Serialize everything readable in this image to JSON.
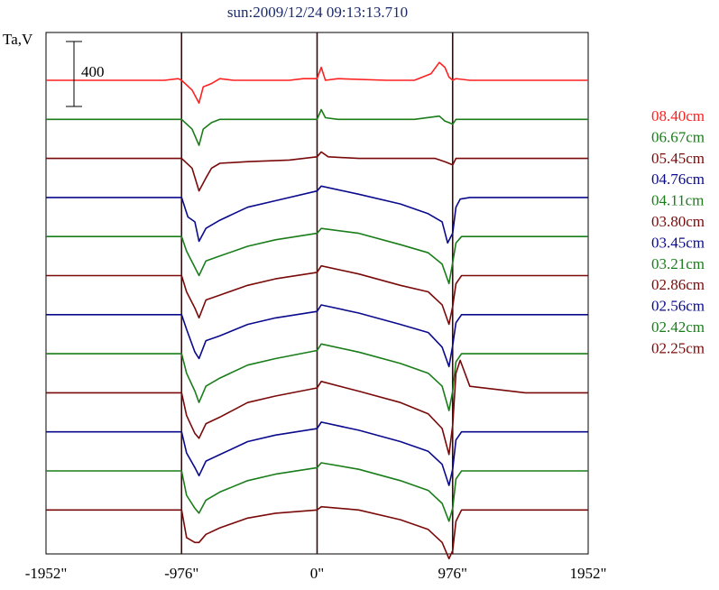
{
  "chart_data": {
    "type": "line",
    "title": "sun:2009/12/24 09:13:13.710",
    "ylabel": "Ta,V",
    "scale_bar_label": "400",
    "x_range": [
      -1952,
      1952
    ],
    "x_ticks": [
      {
        "value": -1952,
        "label": "-1952\""
      },
      {
        "value": -976,
        "label": "-976\""
      },
      {
        "value": 0,
        "label": "0\""
      },
      {
        "value": 976,
        "label": "976\""
      },
      {
        "value": 1952,
        "label": "1952\""
      }
    ],
    "limb_marks": [
      -976,
      0,
      976
    ],
    "x_offset_label": "none",
    "series": [
      {
        "name": "08.40cm",
        "color": "#ff2020",
        "x": [
          -1952,
          -1100,
          -1000,
          -976,
          -900,
          -850,
          -820,
          -760,
          -700,
          -600,
          -200,
          -100,
          0,
          30,
          60,
          150,
          500,
          700,
          820,
          880,
          920,
          950,
          976,
          1000,
          1100,
          1500,
          1952
        ],
        "y": [
          0,
          0,
          10,
          0,
          -60,
          -140,
          -40,
          -20,
          10,
          0,
          0,
          10,
          10,
          80,
          0,
          10,
          0,
          0,
          40,
          110,
          80,
          20,
          0,
          10,
          0,
          0,
          0
        ]
      },
      {
        "name": "06.67cm",
        "color": "#1a7d1a",
        "x": [
          -1952,
          -1000,
          -976,
          -900,
          -850,
          -820,
          -760,
          -700,
          -200,
          0,
          30,
          60,
          150,
          500,
          700,
          880,
          920,
          950,
          976,
          1000,
          1500,
          1952
        ],
        "y": [
          0,
          0,
          0,
          -60,
          -160,
          -60,
          -20,
          0,
          0,
          0,
          60,
          10,
          0,
          0,
          0,
          20,
          -10,
          -20,
          -30,
          0,
          0,
          0
        ]
      },
      {
        "name": "05.45cm",
        "color": "#7a0a0a",
        "x": [
          -1952,
          -1000,
          -976,
          -900,
          -850,
          -800,
          -760,
          -700,
          -500,
          -200,
          0,
          30,
          80,
          300,
          700,
          850,
          920,
          976,
          1000,
          1500,
          1952
        ],
        "y": [
          0,
          0,
          0,
          -60,
          -200,
          -120,
          -60,
          -30,
          -20,
          -10,
          10,
          40,
          10,
          0,
          0,
          0,
          -20,
          -40,
          0,
          0,
          0
        ]
      },
      {
        "name": "04.76cm",
        "color": "#0a0a8c",
        "x": [
          -1952,
          -1000,
          -976,
          -930,
          -880,
          -850,
          -800,
          -700,
          -500,
          -300,
          0,
          30,
          300,
          600,
          800,
          900,
          940,
          976,
          1000,
          1030,
          1100,
          1500,
          1952
        ],
        "y": [
          0,
          0,
          0,
          -120,
          -150,
          -270,
          -190,
          -140,
          -60,
          -20,
          40,
          70,
          20,
          -40,
          -100,
          -150,
          -280,
          -220,
          -60,
          -10,
          0,
          0,
          0
        ]
      },
      {
        "name": "04.11cm",
        "color": "#1a7d1a",
        "x": [
          -1952,
          -1000,
          -976,
          -940,
          -880,
          -850,
          -800,
          -700,
          -500,
          -300,
          0,
          30,
          300,
          600,
          800,
          900,
          950,
          976,
          1000,
          1040,
          1100,
          1500,
          1952
        ],
        "y": [
          0,
          0,
          0,
          -90,
          -190,
          -240,
          -150,
          -120,
          -60,
          -20,
          20,
          50,
          20,
          -50,
          -100,
          -170,
          -290,
          -160,
          -40,
          0,
          0,
          0,
          0
        ]
      },
      {
        "name": "03.80cm",
        "color": "#7a0a0a",
        "x": [
          -1952,
          -1000,
          -976,
          -940,
          -880,
          -850,
          -800,
          -700,
          -500,
          -300,
          0,
          30,
          300,
          600,
          800,
          900,
          950,
          976,
          1000,
          1040,
          1100,
          1500,
          1952
        ],
        "y": [
          0,
          0,
          0,
          -100,
          -200,
          -260,
          -150,
          -120,
          -60,
          -20,
          20,
          60,
          10,
          -60,
          -100,
          -180,
          -300,
          -190,
          -50,
          0,
          0,
          0,
          0
        ]
      },
      {
        "name": "03.45cm",
        "color": "#0a0a8c",
        "x": [
          -1952,
          -1000,
          -976,
          -940,
          -880,
          -850,
          -800,
          -700,
          -500,
          -300,
          0,
          30,
          300,
          600,
          800,
          900,
          950,
          976,
          1000,
          1040,
          1100,
          1500,
          1952
        ],
        "y": [
          0,
          0,
          0,
          -90,
          -230,
          -270,
          -160,
          -130,
          -60,
          -20,
          20,
          60,
          10,
          -60,
          -110,
          -200,
          -320,
          -190,
          -50,
          0,
          0,
          0,
          0
        ]
      },
      {
        "name": "03.21cm",
        "color": "#1a7d1a",
        "x": [
          -1952,
          -1000,
          -976,
          -940,
          -880,
          -850,
          -800,
          -700,
          -500,
          -300,
          0,
          30,
          300,
          600,
          800,
          900,
          950,
          976,
          1000,
          1040,
          1100,
          1500,
          1952
        ],
        "y": [
          0,
          0,
          0,
          -120,
          -230,
          -300,
          -200,
          -150,
          -70,
          -30,
          20,
          60,
          10,
          -60,
          -120,
          -200,
          -350,
          -230,
          -50,
          0,
          0,
          0,
          0
        ]
      },
      {
        "name": "02.86cm",
        "color": "#7a0a0a",
        "x": [
          -1952,
          -1000,
          -976,
          -940,
          -880,
          -850,
          -800,
          -700,
          -500,
          -300,
          0,
          30,
          300,
          600,
          800,
          900,
          950,
          976,
          1000,
          1030,
          1100,
          1500,
          1952
        ],
        "y": [
          0,
          0,
          0,
          -140,
          -250,
          -280,
          -190,
          -150,
          -60,
          -20,
          30,
          70,
          10,
          -60,
          -130,
          -220,
          -380,
          -200,
          120,
          200,
          40,
          0,
          0
        ]
      },
      {
        "name": "02.56cm",
        "color": "#0a0a8c",
        "x": [
          -1952,
          -1000,
          -976,
          -940,
          -880,
          -850,
          -800,
          -700,
          -500,
          -300,
          0,
          30,
          300,
          600,
          800,
          900,
          950,
          976,
          1000,
          1040,
          1100,
          1500,
          1952
        ],
        "y": [
          0,
          0,
          0,
          -130,
          -220,
          -270,
          -180,
          -140,
          -60,
          -20,
          20,
          60,
          10,
          -60,
          -120,
          -200,
          -330,
          -230,
          -50,
          0,
          0,
          0,
          0
        ]
      },
      {
        "name": "02.42cm",
        "color": "#1a7d1a",
        "x": [
          -1952,
          -1000,
          -976,
          -940,
          -880,
          -850,
          -800,
          -700,
          -500,
          -300,
          0,
          30,
          300,
          600,
          800,
          900,
          950,
          976,
          1000,
          1040,
          1100,
          1500,
          1952
        ],
        "y": [
          0,
          0,
          0,
          -150,
          -230,
          -260,
          -180,
          -130,
          -60,
          -20,
          20,
          50,
          10,
          -60,
          -120,
          -200,
          -310,
          -230,
          -50,
          0,
          0,
          0,
          0
        ]
      },
      {
        "name": "02.25cm",
        "color": "#7a0a0a",
        "x": [
          -1952,
          -1000,
          -976,
          -940,
          -880,
          -850,
          -800,
          -700,
          -500,
          -300,
          0,
          30,
          300,
          600,
          800,
          900,
          950,
          976,
          1000,
          1040,
          1100,
          1500,
          1952
        ],
        "y": [
          0,
          0,
          0,
          -170,
          -200,
          -200,
          -150,
          -110,
          -50,
          -20,
          0,
          20,
          0,
          -60,
          -120,
          -200,
          -300,
          -250,
          -70,
          0,
          0,
          0,
          0
        ]
      }
    ],
    "grid": false,
    "legend_placement": "right"
  }
}
